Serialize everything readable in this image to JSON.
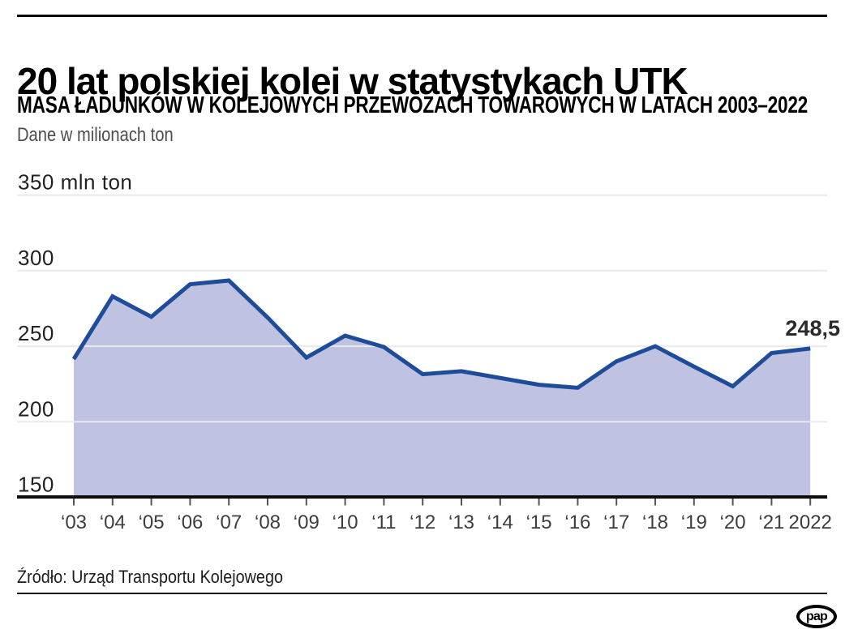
{
  "page": {
    "title": "20 lat polskiej kolei w statystykach UTK",
    "logo_text": "pap"
  },
  "chart_data": {
    "type": "area",
    "title": "MASA ŁADUNKÓW W KOLEJOWYCH PRZEWOZACH TOWAROWYCH W LATACH 2003–2022",
    "unit_note": "Dane w milionach ton",
    "unit": "mln ton",
    "source": "Źródło: Urząd Transportu Kolejowego",
    "x": [
      2003,
      2004,
      2005,
      2006,
      2007,
      2008,
      2009,
      2010,
      2011,
      2012,
      2013,
      2014,
      2015,
      2016,
      2017,
      2018,
      2019,
      2020,
      2021,
      2022
    ],
    "x_tick_labels": [
      "‘03",
      "‘04",
      "‘05",
      "‘06",
      "‘07",
      "‘08",
      "‘09",
      "‘10",
      "‘11",
      "‘12",
      "‘13",
      "‘14",
      "‘15",
      "‘16",
      "‘17",
      "‘18",
      "‘19",
      "‘20",
      "‘21",
      "2022"
    ],
    "values": [
      241.5,
      283.0,
      269.5,
      291.0,
      293.5,
      269.0,
      242.5,
      257.0,
      249.5,
      231.5,
      233.5,
      229.0,
      224.5,
      222.5,
      240.0,
      250.0,
      236.5,
      223.5,
      245.5,
      248.5
    ],
    "y_ticks": [
      {
        "value": 350,
        "label": "350 mln ton"
      },
      {
        "value": 300,
        "label": "300"
      },
      {
        "value": 250,
        "label": "250"
      },
      {
        "value": 200,
        "label": "200"
      },
      {
        "value": 150,
        "label": "150"
      }
    ],
    "ylim": [
      150,
      350
    ],
    "grid": true,
    "legend_position": "none",
    "end_label": "248,5",
    "end_label_value": 248.5,
    "colors": {
      "line": "#1f4c9a",
      "fill": "#bfc2e0",
      "grid": "#e9e9ef",
      "axis": "#0d0d0d",
      "tick": "#555555",
      "x_label": "#3d3d3d",
      "y_label": "#222222",
      "end_label": "#2b2b2b"
    }
  }
}
